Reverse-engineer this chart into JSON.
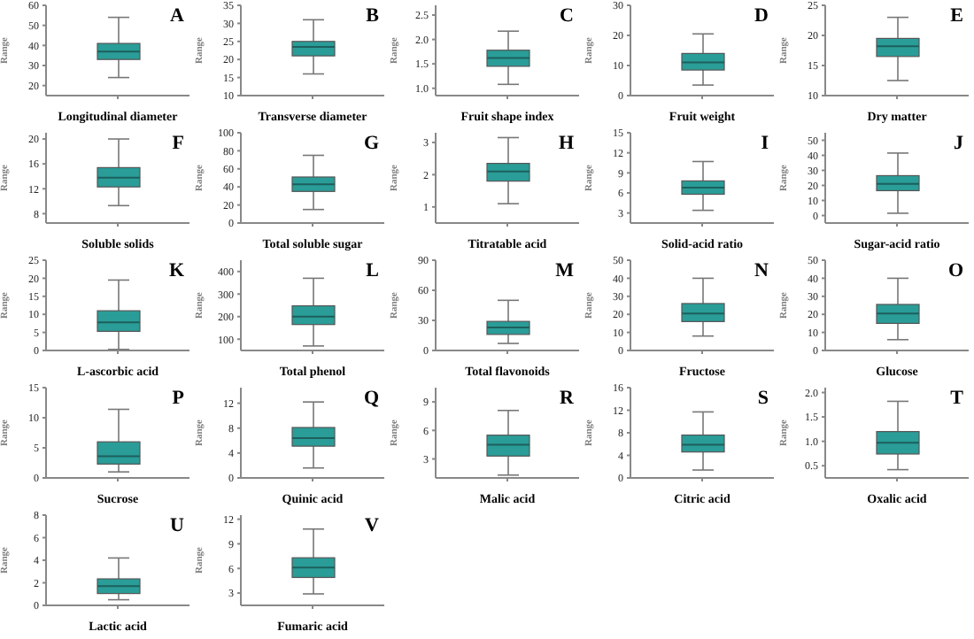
{
  "chart_data": [
    {
      "type": "box",
      "categories": [
        null
      ],
      "xlabel": "Longitudinal diameter",
      "ylabel": "Range",
      "annotations": [
        "A"
      ],
      "color": "#2a9d98",
      "ylim": [
        15,
        60
      ],
      "yticks": [
        20,
        30,
        40,
        50,
        60
      ],
      "boxes": [
        {
          "low": 24,
          "q1": 33,
          "median": 37,
          "q3": 41,
          "high": 54
        }
      ]
    },
    {
      "type": "box",
      "categories": [
        null
      ],
      "xlabel": "Transverse diameter",
      "ylabel": "Range",
      "annotations": [
        "B"
      ],
      "color": "#2a9d98",
      "ylim": [
        10,
        35
      ],
      "yticks": [
        10,
        15,
        20,
        25,
        30,
        35
      ],
      "boxes": [
        {
          "low": 16,
          "q1": 21,
          "median": 23.5,
          "q3": 25,
          "high": 31
        }
      ]
    },
    {
      "type": "box",
      "categories": [
        null
      ],
      "xlabel": "Fruit shape index",
      "ylabel": "Range",
      "annotations": [
        "C"
      ],
      "color": "#2a9d98",
      "ylim": [
        0.85,
        2.7
      ],
      "yticks": [
        {
          "value": 1,
          "label": "1.0"
        },
        {
          "value": 1.5,
          "label": "1.5"
        },
        {
          "value": 2,
          "label": "2.0"
        },
        {
          "value": 2.5,
          "label": "2.5"
        }
      ],
      "boxes": [
        {
          "low": 1.08,
          "q1": 1.45,
          "median": 1.62,
          "q3": 1.78,
          "high": 2.17
        }
      ]
    },
    {
      "type": "box",
      "categories": [
        null
      ],
      "xlabel": "Fruit weight",
      "ylabel": "Range",
      "annotations": [
        "D"
      ],
      "color": "#2a9d98",
      "ylim": [
        0,
        30
      ],
      "yticks": [
        0,
        10,
        20,
        30
      ],
      "boxes": [
        {
          "low": 3.5,
          "q1": 8.5,
          "median": 11,
          "q3": 14,
          "high": 20.5
        }
      ]
    },
    {
      "type": "box",
      "categories": [
        null
      ],
      "xlabel": "Dry matter",
      "ylabel": "Range",
      "annotations": [
        "E"
      ],
      "color": "#2a9d98",
      "ylim": [
        10,
        25
      ],
      "yticks": [
        10,
        15,
        20,
        25
      ],
      "boxes": [
        {
          "low": 12.5,
          "q1": 16.5,
          "median": 18.2,
          "q3": 19.5,
          "high": 23
        }
      ]
    },
    {
      "type": "box",
      "categories": [
        null
      ],
      "xlabel": "Soluble solids",
      "ylabel": "Range",
      "annotations": [
        "F"
      ],
      "color": "#2a9d98",
      "ylim": [
        6.5,
        21
      ],
      "yticks": [
        8,
        12,
        16,
        20
      ],
      "boxes": [
        {
          "low": 9.3,
          "q1": 12.3,
          "median": 13.8,
          "q3": 15.4,
          "high": 20
        }
      ]
    },
    {
      "type": "box",
      "categories": [
        null
      ],
      "xlabel": "Total soluble sugar",
      "ylabel": "Range",
      "annotations": [
        "G"
      ],
      "color": "#2a9d98",
      "ylim": [
        0,
        100
      ],
      "yticks": [
        0,
        20,
        40,
        60,
        80,
        100
      ],
      "boxes": [
        {
          "low": 15,
          "q1": 35,
          "median": 43,
          "q3": 51,
          "high": 75
        }
      ]
    },
    {
      "type": "box",
      "categories": [
        null
      ],
      "xlabel": "Titratable acid",
      "ylabel": "Range",
      "annotations": [
        "H"
      ],
      "color": "#2a9d98",
      "ylim": [
        0.5,
        3.3
      ],
      "yticks": [
        1,
        2,
        3
      ],
      "boxes": [
        {
          "low": 1.1,
          "q1": 1.8,
          "median": 2.1,
          "q3": 2.35,
          "high": 3.15
        }
      ]
    },
    {
      "type": "box",
      "categories": [
        null
      ],
      "xlabel": "Solid-acid ratio",
      "ylabel": "Range",
      "annotations": [
        "I"
      ],
      "color": "#2a9d98",
      "ylim": [
        1.5,
        15
      ],
      "yticks": [
        3,
        6,
        9,
        12,
        15
      ],
      "boxes": [
        {
          "low": 3.4,
          "q1": 5.8,
          "median": 6.8,
          "q3": 7.8,
          "high": 10.7
        }
      ]
    },
    {
      "type": "box",
      "categories": [
        null
      ],
      "xlabel": "Sugar-acid ratio",
      "ylabel": "Range",
      "annotations": [
        "J"
      ],
      "color": "#2a9d98",
      "ylim": [
        -5,
        55
      ],
      "yticks": [
        0,
        10,
        20,
        30,
        40,
        50
      ],
      "boxes": [
        {
          "low": 1.5,
          "q1": 16.5,
          "median": 21,
          "q3": 26.5,
          "high": 41.5
        }
      ]
    },
    {
      "type": "box",
      "categories": [
        null
      ],
      "xlabel": "L-ascorbic acid",
      "ylabel": "Range",
      "annotations": [
        "K"
      ],
      "color": "#2a9d98",
      "ylim": [
        0,
        25
      ],
      "yticks": [
        0,
        5,
        10,
        15,
        20,
        25
      ],
      "boxes": [
        {
          "low": 0.3,
          "q1": 5.3,
          "median": 7.8,
          "q3": 11,
          "high": 19.5
        }
      ]
    },
    {
      "type": "box",
      "categories": [
        null
      ],
      "xlabel": "Total phenol",
      "ylabel": "Range",
      "annotations": [
        "L"
      ],
      "color": "#2a9d98",
      "ylim": [
        50,
        450
      ],
      "yticks": [
        100,
        200,
        300,
        400
      ],
      "boxes": [
        {
          "low": 70,
          "q1": 165,
          "median": 200,
          "q3": 248,
          "high": 370
        }
      ]
    },
    {
      "type": "box",
      "categories": [
        null
      ],
      "xlabel": "Total flavonoids",
      "ylabel": "Range",
      "annotations": [
        "M"
      ],
      "color": "#2a9d98",
      "ylim": [
        0,
        90
      ],
      "yticks": [
        0,
        30,
        60,
        90
      ],
      "boxes": [
        {
          "low": 7,
          "q1": 16,
          "median": 23,
          "q3": 29,
          "high": 50
        }
      ]
    },
    {
      "type": "box",
      "categories": [
        null
      ],
      "xlabel": "Fructose",
      "ylabel": "Range",
      "annotations": [
        "N"
      ],
      "color": "#2a9d98",
      "ylim": [
        0,
        50
      ],
      "yticks": [
        0,
        10,
        20,
        30,
        40,
        50
      ],
      "boxes": [
        {
          "low": 8,
          "q1": 16,
          "median": 20.5,
          "q3": 26,
          "high": 40
        }
      ]
    },
    {
      "type": "box",
      "categories": [
        null
      ],
      "xlabel": "Glucose",
      "ylabel": "Range",
      "annotations": [
        "O"
      ],
      "color": "#2a9d98",
      "ylim": [
        0,
        50
      ],
      "yticks": [
        0,
        10,
        20,
        30,
        40,
        50
      ],
      "boxes": [
        {
          "low": 6,
          "q1": 15,
          "median": 20.5,
          "q3": 25.5,
          "high": 40
        }
      ]
    },
    {
      "type": "box",
      "categories": [
        null
      ],
      "xlabel": "Sucrose",
      "ylabel": "Range",
      "annotations": [
        "P"
      ],
      "color": "#2a9d98",
      "ylim": [
        0,
        15
      ],
      "yticks": [
        0,
        5,
        10,
        15
      ],
      "boxes": [
        {
          "low": 1,
          "q1": 2.3,
          "median": 3.6,
          "q3": 6,
          "high": 11.4
        }
      ]
    },
    {
      "type": "box",
      "categories": [
        null
      ],
      "xlabel": "Quinic acid",
      "ylabel": "Range",
      "annotations": [
        "Q"
      ],
      "color": "#2a9d98",
      "ylim": [
        0,
        14.5
      ],
      "yticks": [
        0,
        4,
        8,
        12
      ],
      "boxes": [
        {
          "low": 1.6,
          "q1": 5.1,
          "median": 6.4,
          "q3": 8.1,
          "high": 12.2
        }
      ]
    },
    {
      "type": "box",
      "categories": [
        null
      ],
      "xlabel": "Malic acid",
      "ylabel": "Range",
      "annotations": [
        "R"
      ],
      "color": "#2a9d98",
      "ylim": [
        1,
        10.5
      ],
      "yticks": [
        3,
        6,
        9
      ],
      "boxes": [
        {
          "low": 1.3,
          "q1": 3.3,
          "median": 4.5,
          "q3": 5.5,
          "high": 8.1
        }
      ]
    },
    {
      "type": "box",
      "categories": [
        null
      ],
      "xlabel": "Citric acid",
      "ylabel": "Range",
      "annotations": [
        "S"
      ],
      "color": "#2a9d98",
      "ylim": [
        0,
        16
      ],
      "yticks": [
        0,
        4,
        8,
        12,
        16
      ],
      "boxes": [
        {
          "low": 1.4,
          "q1": 4.6,
          "median": 5.9,
          "q3": 7.6,
          "high": 11.7
        }
      ]
    },
    {
      "type": "box",
      "categories": [
        null
      ],
      "xlabel": "Oxalic acid",
      "ylabel": "Range",
      "annotations": [
        "T"
      ],
      "color": "#2a9d98",
      "ylim": [
        0.25,
        2.1
      ],
      "yticks": [
        {
          "value": 0.5,
          "label": "0.5"
        },
        {
          "value": 1,
          "label": "1.0"
        },
        {
          "value": 1.5,
          "label": "1.5"
        },
        {
          "value": 2,
          "label": "2.0"
        }
      ],
      "boxes": [
        {
          "low": 0.42,
          "q1": 0.74,
          "median": 0.97,
          "q3": 1.2,
          "high": 1.82
        }
      ]
    },
    {
      "type": "box",
      "categories": [
        null
      ],
      "xlabel": "Lactic acid",
      "ylabel": "Range",
      "annotations": [
        "U"
      ],
      "color": "#2a9d98",
      "ylim": [
        0,
        8
      ],
      "yticks": [
        0,
        2,
        4,
        6,
        8
      ],
      "boxes": [
        {
          "low": 0.5,
          "q1": 1.05,
          "median": 1.7,
          "q3": 2.35,
          "high": 4.2
        }
      ]
    },
    {
      "type": "box",
      "categories": [
        null
      ],
      "xlabel": "Fumaric acid",
      "ylabel": "Range",
      "annotations": [
        "V"
      ],
      "color": "#2a9d98",
      "ylim": [
        1.5,
        12.5
      ],
      "yticks": [
        3,
        6,
        9,
        12
      ],
      "boxes": [
        {
          "low": 2.9,
          "q1": 4.9,
          "median": 6.1,
          "q3": 7.3,
          "high": 10.8
        }
      ]
    }
  ]
}
